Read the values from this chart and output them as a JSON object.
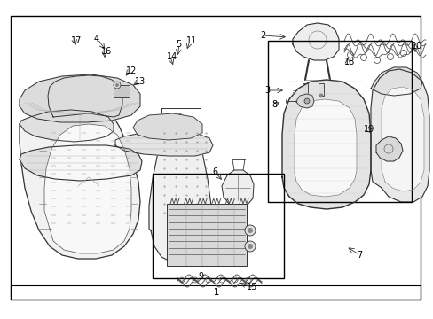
{
  "figsize": [
    4.89,
    3.6
  ],
  "dpi": 100,
  "bg": "#ffffff",
  "lc": "#333333",
  "tc": "#000000",
  "bc": "#000000",
  "gray_fill": "#e8e8e8",
  "light_fill": "#f5f5f5",
  "mid_fill": "#d0d0d0"
}
